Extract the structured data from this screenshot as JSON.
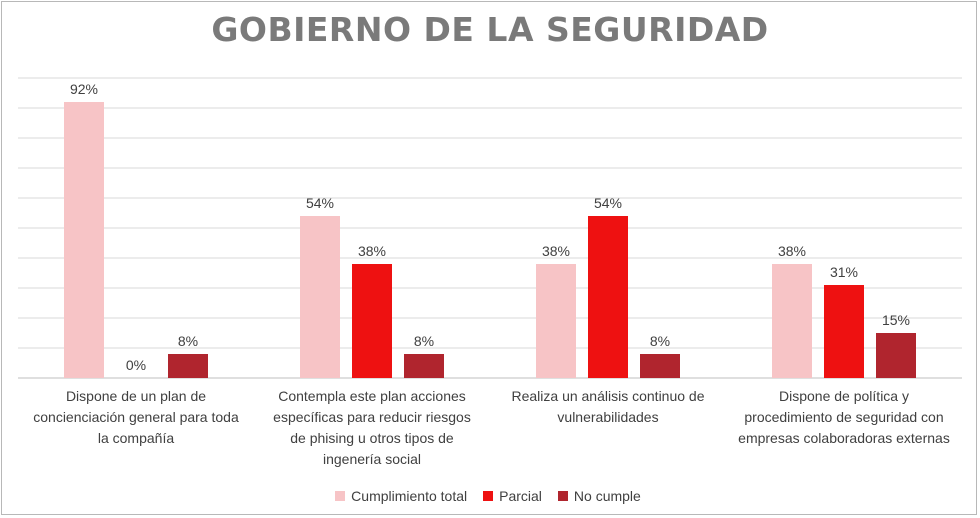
{
  "chart_data": {
    "type": "bar",
    "title": "GOBIERNO DE LA SEGURIDAD",
    "categories": [
      [
        "Dispone de un plan de",
        "concienciación general para toda",
        "la compañía"
      ],
      [
        "Contempla este plan acciones",
        "específicas para reducir riesgos",
        "de phising u otros tipos de",
        "ingenería social"
      ],
      [
        "Realiza un análisis continuo de",
        "vulnerabilidades"
      ],
      [
        "Dispone de política y",
        "procedimiento de seguridad con",
        "empresas colaboradoras externas"
      ]
    ],
    "series": [
      {
        "name": "Cumplimiento total",
        "color": "#f7c4c6",
        "values": [
          92,
          54,
          38,
          38
        ],
        "labels": [
          "92%",
          "54%",
          "38%",
          "38%"
        ]
      },
      {
        "name": "Parcial",
        "color": "#ee1111",
        "values": [
          0,
          38,
          54,
          31
        ],
        "labels": [
          "0%",
          "38%",
          "54%",
          "31%"
        ]
      },
      {
        "name": "No cumple",
        "color": "#b0252e",
        "values": [
          8,
          8,
          8,
          15
        ],
        "labels": [
          "8%",
          "8%",
          "8%",
          "15%"
        ]
      }
    ],
    "ylim": [
      0,
      100
    ],
    "grid": true,
    "legend_position": "bottom"
  }
}
